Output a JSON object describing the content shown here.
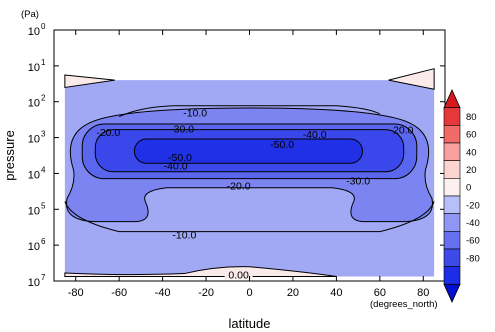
{
  "chart_data": {
    "type": "contour",
    "xlabel": "latitude",
    "x_units": "(degrees_north)",
    "ylabel": "pressure",
    "y_units": "(Pa)",
    "y_scale": "log",
    "xlim": [
      -90,
      90
    ],
    "ylim": [
      1,
      10000000
    ],
    "x_ticks": [
      -80,
      -60,
      -40,
      -20,
      0,
      20,
      40,
      60,
      80
    ],
    "x_tick_labels": [
      "-80",
      "-60",
      "-40",
      "-20",
      "0",
      "20",
      "40",
      "60",
      "80"
    ],
    "y_ticks": [
      1,
      10,
      100,
      1000,
      10000,
      100000,
      1000000,
      10000000
    ],
    "y_tick_labels": [
      {
        "base": "10",
        "exp": "0"
      },
      {
        "base": "10",
        "exp": "1"
      },
      {
        "base": "10",
        "exp": "2"
      },
      {
        "base": "10",
        "exp": "3"
      },
      {
        "base": "10",
        "exp": "4"
      },
      {
        "base": "10",
        "exp": "5"
      },
      {
        "base": "10",
        "exp": "6"
      },
      {
        "base": "10",
        "exp": "7"
      }
    ],
    "data_extent": {
      "lat": [
        -85,
        85
      ],
      "pressure": [
        25,
        7500000
      ]
    },
    "contour_levels": [
      -50,
      -40,
      -30,
      -20,
      -10,
      0
    ],
    "contour_labels": [
      {
        "text": "-10.0",
        "lat": -25,
        "p": 200
      },
      {
        "text": "-20.0",
        "lat": -65,
        "p": 700
      },
      {
        "text": "-30.0",
        "lat": -31,
        "p": 550
      },
      {
        "text": "-40.0",
        "lat": 30,
        "p": 800
      },
      {
        "text": "-20.0",
        "lat": 70,
        "p": 600
      },
      {
        "text": "-50.0",
        "lat": 15,
        "p": 1500
      },
      {
        "text": "-50.0",
        "lat": -32,
        "p": 3500
      },
      {
        "text": "-40.0",
        "lat": -34,
        "p": 6000
      },
      {
        "text": "-20.0",
        "lat": -5,
        "p": 22000
      },
      {
        "text": "-30.0",
        "lat": 50,
        "p": 16000
      },
      {
        "text": "-10.0",
        "lat": -30,
        "p": 500000
      },
      {
        "text": "0.00",
        "lat": -5,
        "p": 6500000
      }
    ],
    "colorbar": {
      "ticks": [
        80,
        60,
        40,
        20,
        0,
        -20,
        -40,
        -60,
        -80
      ],
      "tick_labels": [
        "80",
        "60",
        "40",
        "20",
        "0",
        "-20",
        "-40",
        "-60",
        "-80"
      ],
      "colors": [
        "#d7191c",
        "#e6383a",
        "#f06a68",
        "#f8a09e",
        "#fcd4d2",
        "#fdf0f0",
        "#b8bff8",
        "#8f96f3",
        "#6670ee",
        "#3d4ae8",
        "#1d2ce6",
        "#0010ce"
      ]
    },
    "region_colors": {
      "positive": "#fbeaea",
      "level_-10": "#a2a9f4",
      "level_-20": "#7b84f1",
      "level_-30": "#5b66ee",
      "level_-40": "#3a47ea",
      "level_-50": "#2030e6"
    }
  }
}
